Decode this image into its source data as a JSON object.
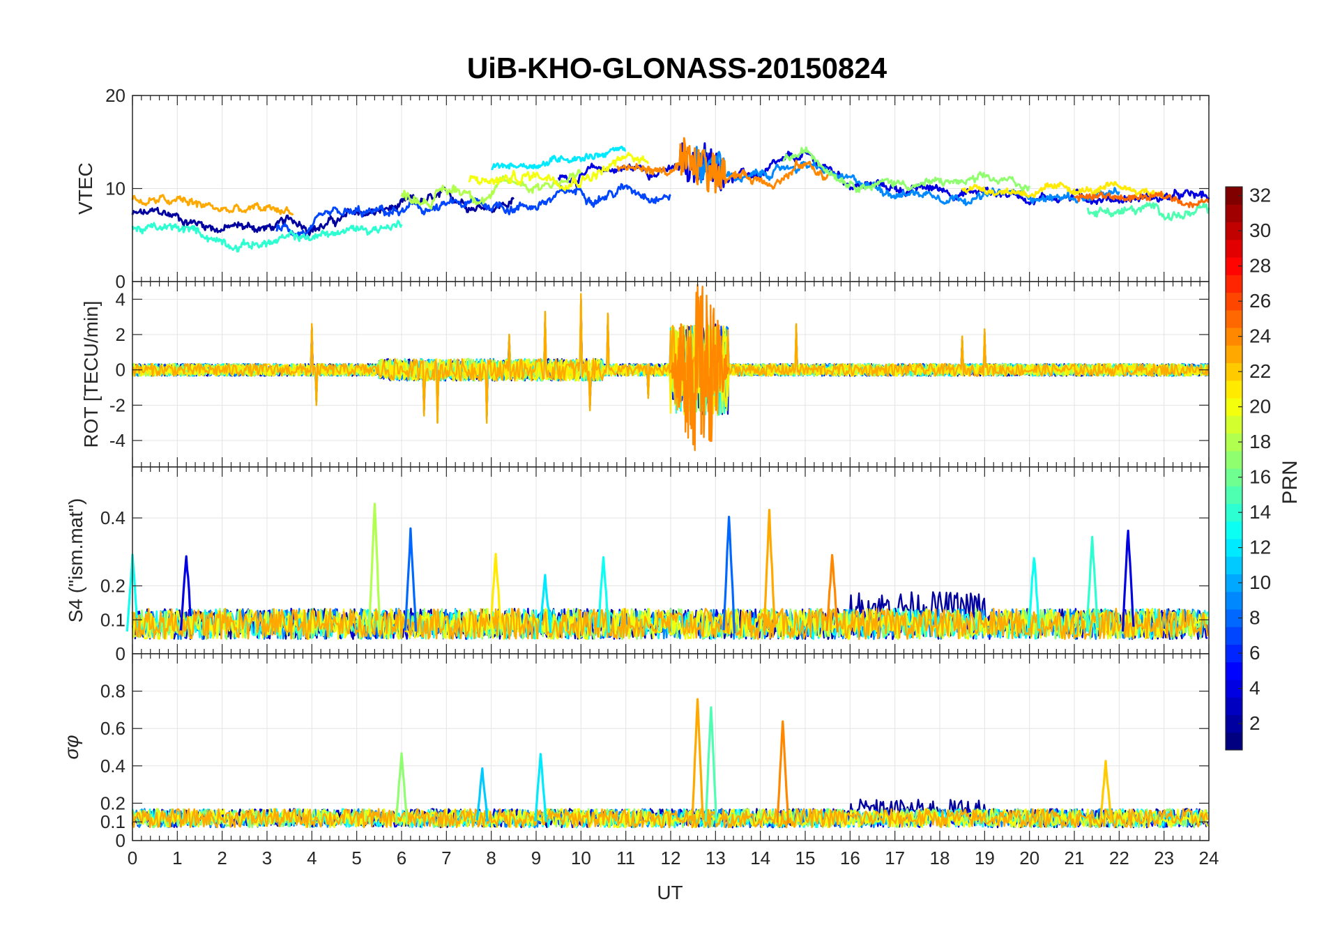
{
  "title": "UiB-KHO-GLONASS-20150824",
  "chart_data": [
    {
      "type": "line",
      "panel": "vtec",
      "ylabel": "VTEC",
      "ylim": [
        0,
        20
      ],
      "yticks": [
        0,
        10,
        20
      ],
      "xlim": [
        0,
        24
      ],
      "grid": true,
      "baseline": [
        8.2,
        7.8,
        7.0,
        6.8,
        7.2,
        8.0,
        8.8,
        9.3,
        9.6,
        10.2,
        11.2,
        11.8,
        11.6,
        11.2,
        11.0,
        12.5,
        10.2,
        9.6,
        9.4,
        9.3,
        9.0,
        8.9,
        8.9,
        8.7,
        8.3,
        7.8,
        7.2,
        6.8,
        6.6
      ],
      "series": [
        {
          "prn": 2,
          "start": 0.0,
          "end": 8.5,
          "offset": -1.0,
          "wobble": 1.2
        },
        {
          "prn": 4,
          "start": 9.5,
          "end": 24.0,
          "offset": 0.4,
          "wobble": 1.1
        },
        {
          "prn": 7,
          "start": 3.2,
          "end": 12.0,
          "offset": -1.6,
          "wobble": 1.3
        },
        {
          "prn": 9,
          "start": 12.5,
          "end": 22.0,
          "offset": 0.2,
          "wobble": 0.9
        },
        {
          "prn": 12,
          "start": 8.0,
          "end": 11.0,
          "offset": 2.6,
          "wobble": 0.8
        },
        {
          "prn": 14,
          "start": 0.0,
          "end": 6.0,
          "offset": -2.5,
          "wobble": 1.0
        },
        {
          "prn": 15,
          "start": 21.3,
          "end": 24.0,
          "offset": -1.2,
          "wobble": 1.2
        },
        {
          "prn": 17,
          "start": 14.5,
          "end": 20.0,
          "offset": 1.2,
          "wobble": 1.0
        },
        {
          "prn": 18,
          "start": 6.0,
          "end": 10.0,
          "offset": 0.5,
          "wobble": 1.6
        },
        {
          "prn": 20,
          "start": 7.5,
          "end": 11.5,
          "offset": 1.2,
          "wobble": 1.6
        },
        {
          "prn": 21,
          "start": 18.5,
          "end": 23.0,
          "offset": 0.8,
          "wobble": 0.8
        },
        {
          "prn": 23,
          "start": 0.0,
          "end": 3.6,
          "offset": 0.6,
          "wobble": 1.2
        },
        {
          "prn": 24,
          "start": 10.8,
          "end": 15.5,
          "offset": 0.3,
          "wobble": 1.4
        },
        {
          "prn": 25,
          "start": 21.0,
          "end": 24.0,
          "offset": 0.2,
          "wobble": 0.8
        }
      ]
    },
    {
      "type": "line",
      "panel": "rot",
      "ylabel": "ROT [TECU/min]",
      "ylim": [
        -5.5,
        5
      ],
      "yticks": [
        -4,
        -2,
        0,
        2,
        4
      ],
      "ytick_labels": [
        "-4",
        "-2",
        "0",
        "2",
        "4"
      ],
      "xlim": [
        0,
        24
      ],
      "grid": true,
      "noise_level": 0.35,
      "burst": {
        "start": 12.0,
        "end": 13.3,
        "peak_max": 5.0,
        "peak_min": -4.5
      },
      "spikes": [
        [
          4.0,
          2.6
        ],
        [
          4.1,
          -2.0
        ],
        [
          6.5,
          -2.6
        ],
        [
          6.8,
          -3.0
        ],
        [
          7.9,
          -3.0
        ],
        [
          8.4,
          2.0
        ],
        [
          9.2,
          3.3
        ],
        [
          10.0,
          4.3
        ],
        [
          10.2,
          -2.3
        ],
        [
          10.6,
          3.2
        ],
        [
          11.5,
          -1.6
        ],
        [
          14.8,
          2.6
        ],
        [
          18.5,
          1.9
        ],
        [
          19.0,
          2.3
        ]
      ]
    },
    {
      "type": "line",
      "panel": "s4",
      "ylabel": "S4 (\"ism.mat\")",
      "ylim": [
        0,
        0.55
      ],
      "yticks": [
        0,
        0.1,
        0.2,
        0.4
      ],
      "ytick_labels": [
        "0",
        "0.1",
        "0.2",
        "0.4"
      ],
      "xlim": [
        0,
        24
      ],
      "grid": true,
      "base_level": 0.07,
      "spikes": [
        {
          "x": 0.0,
          "y": 0.29,
          "prn": 13
        },
        {
          "x": 1.2,
          "y": 0.29,
          "prn": 4
        },
        {
          "x": 5.4,
          "y": 0.45,
          "prn": 18
        },
        {
          "x": 6.2,
          "y": 0.36,
          "prn": 8
        },
        {
          "x": 8.1,
          "y": 0.29,
          "prn": 21
        },
        {
          "x": 9.2,
          "y": 0.23,
          "prn": 12
        },
        {
          "x": 10.5,
          "y": 0.29,
          "prn": 13
        },
        {
          "x": 13.3,
          "y": 0.41,
          "prn": 8
        },
        {
          "x": 14.2,
          "y": 0.42,
          "prn": 23
        },
        {
          "x": 15.6,
          "y": 0.29,
          "prn": 24
        },
        {
          "x": 20.1,
          "y": 0.29,
          "prn": 13
        },
        {
          "x": 21.4,
          "y": 0.34,
          "prn": 14
        },
        {
          "x": 22.2,
          "y": 0.37,
          "prn": 4
        }
      ]
    },
    {
      "type": "line",
      "panel": "sigma_phi",
      "ylabel": "σφ",
      "ylim": [
        0,
        1
      ],
      "yticks": [
        0,
        0.1,
        0.2,
        0.4,
        0.6,
        0.8
      ],
      "ytick_labels": [
        "0",
        "0.1",
        "0.2",
        "0.4",
        "0.6",
        "0.8"
      ],
      "xlabel": "UT",
      "xlim": [
        0,
        24
      ],
      "xticks": [
        0,
        1,
        2,
        3,
        4,
        5,
        6,
        7,
        8,
        9,
        10,
        11,
        12,
        13,
        14,
        15,
        16,
        17,
        18,
        19,
        20,
        21,
        22,
        23,
        24
      ],
      "grid": true,
      "base_level": 0.1,
      "spikes": [
        {
          "x": 6.0,
          "y": 0.47,
          "prn": 17
        },
        {
          "x": 7.8,
          "y": 0.38,
          "prn": 11
        },
        {
          "x": 9.1,
          "y": 0.47,
          "prn": 12
        },
        {
          "x": 12.6,
          "y": 0.76,
          "prn": 23
        },
        {
          "x": 12.9,
          "y": 0.72,
          "prn": 15
        },
        {
          "x": 14.5,
          "y": 0.64,
          "prn": 24
        },
        {
          "x": 21.7,
          "y": 0.42,
          "prn": 22
        }
      ]
    }
  ],
  "colorbar": {
    "label": "PRN",
    "min": 1,
    "max": 32,
    "ticks": [
      "2",
      "4",
      "6",
      "8",
      "10",
      "12",
      "14",
      "16",
      "18",
      "20",
      "22",
      "24",
      "26",
      "28",
      "30",
      "32"
    ],
    "colormap": "jet"
  }
}
